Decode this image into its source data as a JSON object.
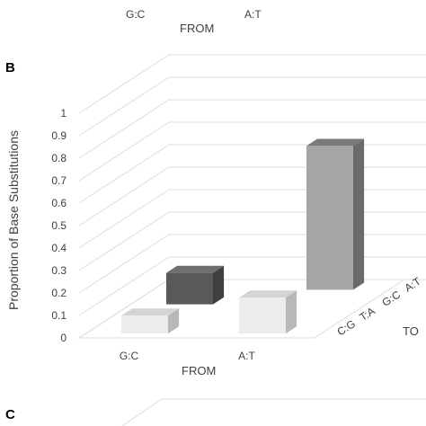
{
  "panels": {
    "top_fragment": {
      "x_categories": [
        "G:C",
        "A:T"
      ],
      "xlabel": "FROM"
    },
    "panel_b": {
      "label": "B"
    },
    "panel_c": {
      "label": "C"
    }
  },
  "colors": {
    "grid": "#dcdcdc",
    "text": "#404040",
    "bar_dark_front": "#595959",
    "bar_dark_top": "#6e6e6e",
    "bar_dark_side": "#3f3f3f",
    "bar_mid_front": "#a6a6a6",
    "bar_mid_top": "#7a7a7a",
    "bar_mid_side": "#6a6a6a",
    "bar_light_front": "#ececec",
    "bar_light_top": "#d4d4d4",
    "bar_light_side": "#b8b8b8"
  },
  "chart_data": {
    "type": "bar",
    "title": "",
    "ylabel": "Proportion of Base Substitutions",
    "xlabel": "FROM",
    "zlabel": "TO",
    "ylim": [
      0,
      1
    ],
    "yticks": [
      "0",
      "0.1",
      "0.2",
      "0.3",
      "0.4",
      "0.5",
      "0.6",
      "0.7",
      "0.8",
      "0.9",
      "1"
    ],
    "x_categories": [
      "G:C",
      "A:T"
    ],
    "z_categories": [
      "C:G",
      "T:A",
      "G:C",
      "A:T"
    ],
    "grid": true,
    "bars": [
      {
        "from": "G:C",
        "to": "C:G",
        "value": 0.08,
        "shade": "light"
      },
      {
        "from": "A:T",
        "to": "C:G",
        "value": 0.16,
        "shade": "light"
      },
      {
        "from": "G:C",
        "to": "G:C",
        "value": 0.14,
        "shade": "dark"
      },
      {
        "from": "A:T",
        "to": "A:T",
        "value": 0.64,
        "shade": "mid"
      }
    ]
  }
}
